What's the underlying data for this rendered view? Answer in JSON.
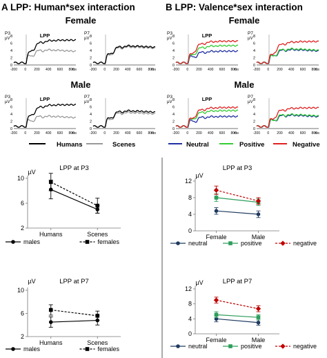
{
  "panels": {
    "A": {
      "title": "A LPP: Human*sex interaction"
    },
    "B": {
      "title": "B LPP: Valence*sex interaction"
    }
  },
  "erp": {
    "female_label": "Female",
    "male_label": "Male",
    "lpp_label": "LPP",
    "ms_label": "ms",
    "uv_label": "µV",
    "electrodes": [
      "P3",
      "P7"
    ],
    "y_ticks": [
      "8",
      "6",
      "4",
      "2",
      "0"
    ],
    "x_ticks": [
      "-200",
      "0",
      "200",
      "400",
      "600",
      "800"
    ],
    "legend_A": [
      {
        "name": "Humans",
        "color": "#000000"
      },
      {
        "name": "Scenes",
        "color": "#999999"
      }
    ],
    "legend_B": [
      {
        "name": "Neutral",
        "color": "#1f2fa0"
      },
      {
        "name": "Positive",
        "color": "#33cc33"
      },
      {
        "name": "Negative",
        "color": "#e02020"
      }
    ]
  },
  "chart_data": [
    {
      "type": "line",
      "title": "LPP at P3",
      "ylabel": "µV",
      "categories": [
        "Humans",
        "Scenes"
      ],
      "ylim": [
        2,
        10
      ],
      "yticks": [
        2,
        6,
        10
      ],
      "series": [
        {
          "name": "males",
          "values": [
            8.2,
            5.0
          ],
          "errors": [
            1.5,
            0.6
          ],
          "style": "solid",
          "color": "#000000",
          "marker": "circle"
        },
        {
          "name": "females",
          "values": [
            9.4,
            5.6
          ],
          "errors": [
            1.4,
            1.2
          ],
          "style": "dashed",
          "color": "#000000",
          "marker": "square"
        }
      ]
    },
    {
      "type": "line",
      "title": "LPP at P7",
      "ylabel": "µV",
      "categories": [
        "Humans",
        "Scenes"
      ],
      "ylim": [
        2,
        10
      ],
      "yticks": [
        2,
        6,
        10
      ],
      "series": [
        {
          "name": "males",
          "values": [
            4.5,
            4.8
          ],
          "errors": [
            0.9,
            0.8
          ],
          "style": "solid",
          "color": "#000000",
          "marker": "circle"
        },
        {
          "name": "females",
          "values": [
            6.6,
            5.6
          ],
          "errors": [
            0.9,
            0.8
          ],
          "style": "dashed",
          "color": "#000000",
          "marker": "square"
        }
      ]
    },
    {
      "type": "line",
      "title": "LPP at P3",
      "ylabel": "µV",
      "categories": [
        "Female",
        "Male"
      ],
      "ylim": [
        0,
        12
      ],
      "yticks": [
        0,
        4,
        8,
        12
      ],
      "series": [
        {
          "name": "neutral",
          "values": [
            4.8,
            4.0
          ],
          "errors": [
            0.8,
            0.8
          ],
          "style": "solid",
          "color": "#1f3a5f",
          "marker": "circle"
        },
        {
          "name": "positive",
          "values": [
            8.0,
            6.9
          ],
          "errors": [
            0.9,
            0.8
          ],
          "style": "solid",
          "color": "#2e9e5b",
          "marker": "square"
        },
        {
          "name": "negative",
          "values": [
            9.8,
            7.2
          ],
          "errors": [
            1.0,
            0.8
          ],
          "style": "dashed",
          "color": "#c00000",
          "marker": "diamond"
        }
      ]
    },
    {
      "type": "line",
      "title": "LPP at P7",
      "ylabel": "µV",
      "categories": [
        "Female",
        "Male"
      ],
      "ylim": [
        0,
        12
      ],
      "yticks": [
        0,
        4,
        8,
        12
      ],
      "series": [
        {
          "name": "neutral",
          "values": [
            4.0,
            3.0
          ],
          "errors": [
            0.8,
            0.7
          ],
          "style": "solid",
          "color": "#1f3a5f",
          "marker": "circle"
        },
        {
          "name": "positive",
          "values": [
            5.1,
            4.4
          ],
          "errors": [
            0.8,
            0.7
          ],
          "style": "solid",
          "color": "#2e9e5b",
          "marker": "square"
        },
        {
          "name": "negative",
          "values": [
            9.0,
            6.7
          ],
          "errors": [
            0.8,
            0.8
          ],
          "style": "dashed",
          "color": "#c00000",
          "marker": "diamond"
        }
      ]
    }
  ]
}
